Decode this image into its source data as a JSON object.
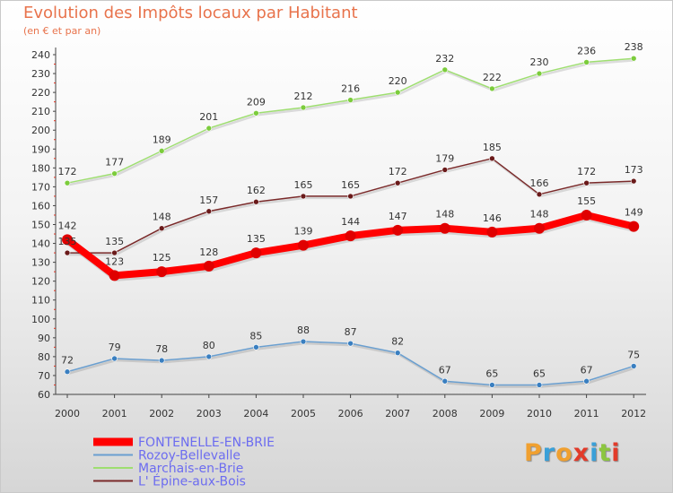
{
  "title": "Evolution des Impôts locaux par Habitant",
  "subtitle": "(en € et par an)",
  "logo": {
    "text": "Proxiti",
    "letters": [
      {
        "ch": "P",
        "color": "#f0a030"
      },
      {
        "ch": "r",
        "color": "#3aa0d8"
      },
      {
        "ch": "o",
        "color": "#f0a030"
      },
      {
        "ch": "x",
        "color": "#e23b2a"
      },
      {
        "ch": "i",
        "color": "#3aa0d8"
      },
      {
        "ch": "t",
        "color": "#8cc63f"
      },
      {
        "ch": "i",
        "color": "#e23b2a"
      }
    ]
  },
  "chart_data": {
    "type": "line",
    "title": "Evolution des Impôts locaux par Habitant",
    "subtitle": "(en € et par an)",
    "x": [
      "2000",
      "2001",
      "2002",
      "2003",
      "2004",
      "2005",
      "2006",
      "2007",
      "2008",
      "2009",
      "2010",
      "2011",
      "2012"
    ],
    "ylim": [
      60,
      240
    ],
    "yticks": [
      60,
      70,
      80,
      90,
      100,
      110,
      120,
      130,
      140,
      150,
      160,
      170,
      180,
      190,
      200,
      210,
      220,
      230,
      240
    ],
    "grid": false,
    "legend_position": "bottom-left",
    "series": [
      {
        "name": "FONTENELLE-EN-BRIE",
        "color": "#ff0000",
        "point_color": "#e00000",
        "width": 8,
        "label_color": "#333333",
        "values": [
          142,
          123,
          125,
          128,
          135,
          139,
          144,
          147,
          148,
          146,
          148,
          155,
          149
        ]
      },
      {
        "name": "Rozoy-Bellevalle",
        "color": "#6a9fd0",
        "point_color": "#3a7fc0",
        "width": 1.5,
        "label_color": "#333333",
        "values": [
          72,
          79,
          78,
          80,
          85,
          88,
          87,
          82,
          67,
          65,
          65,
          67,
          75
        ]
      },
      {
        "name": "Marchais-en-Brie",
        "color": "#9ede70",
        "point_color": "#7ccc3c",
        "width": 1.5,
        "label_color": "#333333",
        "values": [
          172,
          177,
          189,
          201,
          209,
          212,
          216,
          220,
          232,
          222,
          230,
          236,
          238
        ]
      },
      {
        "name": "L'Épine-aux-Bois",
        "color": "#7a2a2a",
        "point_color": "#6a1a1a",
        "width": 1.5,
        "label_color": "#333333",
        "values": [
          135,
          135,
          148,
          157,
          162,
          165,
          165,
          172,
          179,
          185,
          166,
          172,
          173
        ]
      }
    ],
    "data_labels": {
      "FONTENELLE-EN-BRIE": [
        "142",
        "123",
        "125",
        "128",
        "135",
        "139",
        "144",
        "147",
        "148",
        "146",
        "148",
        "155",
        "149"
      ],
      "Rozoy-Bellevalle": [
        "72",
        "79",
        "78",
        "80",
        "85",
        "88",
        "87",
        "82",
        "67",
        "65",
        "65",
        "67",
        "75"
      ],
      "Marchais-en-Brie": [
        "172",
        "177",
        "189",
        "201",
        "209",
        "212",
        "216",
        "220",
        "232",
        "222",
        "230",
        "236",
        "238"
      ],
      "L'Épine-aux-Bois": [
        "135",
        "135",
        "148",
        "157",
        "162",
        "165",
        "165",
        "172",
        "179",
        "185",
        "166",
        "172",
        "173"
      ]
    }
  },
  "legend": {
    "entries": [
      {
        "label": "FONTENELLE-EN-BRIE",
        "text_color": "#6c6cf0"
      },
      {
        "label": "Rozoy-Bellevalle",
        "text_color": "#6c6cf0"
      },
      {
        "label": "Marchais-en-Brie",
        "text_color": "#6c6cf0"
      },
      {
        "label": "L' Épine-aux-Bois",
        "text_color": "#6c6cf0"
      }
    ]
  }
}
